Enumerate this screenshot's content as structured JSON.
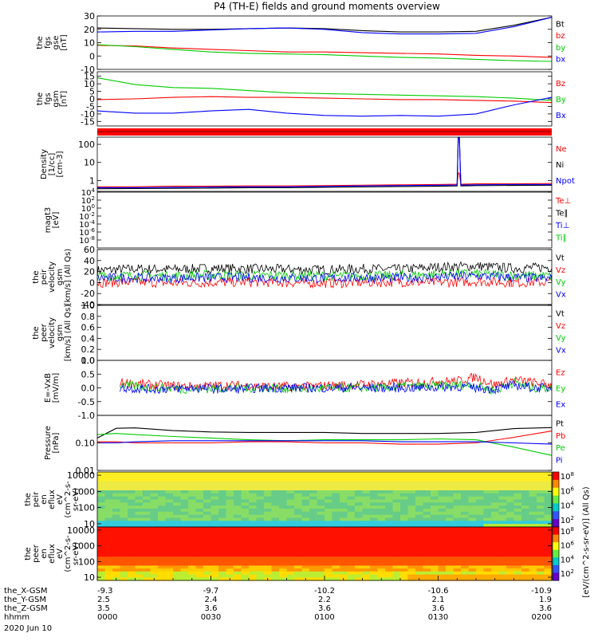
{
  "title": "P4 (TH-E) fields and ground moments overview",
  "date": "2020 Jun 10",
  "colorbar_label": "[eV/(cm^2-s-sr-eV)] (All Qs)",
  "colors": {
    "black": "#000000",
    "red": "#ff0000",
    "green": "#00cc00",
    "blue": "#0000ff"
  },
  "chart_data": [
    {
      "type": "line",
      "id": "fgs",
      "ylabel_lines": [
        "the",
        "fgs",
        "gse",
        "[nT]"
      ],
      "ylim": [
        -10,
        30
      ],
      "ytick_labels": [
        "30",
        "20",
        "10",
        "0",
        "-10"
      ],
      "ytick_values": [
        30,
        20,
        10,
        0,
        -10
      ],
      "x": [
        0,
        10,
        20,
        30,
        40,
        50,
        60,
        70,
        80,
        90,
        100,
        110,
        120
      ],
      "series": [
        {
          "name": "Bt",
          "color": "black",
          "values": [
            21,
            20.5,
            20,
            20,
            20.5,
            21,
            20.5,
            19,
            18,
            18,
            18.5,
            23,
            29
          ]
        },
        {
          "name": "bz",
          "color": "red",
          "values": [
            8,
            7.5,
            6,
            5,
            4,
            3,
            3,
            2.5,
            2,
            1.5,
            0.5,
            0,
            -1
          ]
        },
        {
          "name": "by",
          "color": "green",
          "values": [
            8.5,
            7,
            5,
            3,
            2,
            1.5,
            1,
            0,
            -1,
            -1.5,
            -2.5,
            -3.5,
            -4
          ]
        },
        {
          "name": "bx",
          "color": "blue",
          "values": [
            18,
            18.5,
            18.5,
            19.5,
            20.5,
            21,
            20,
            17.5,
            16.5,
            16.5,
            17,
            22,
            29
          ]
        }
      ]
    },
    {
      "type": "line",
      "id": "fgs-gsm",
      "ylabel_lines": [
        "the",
        "fgs",
        "gsm",
        "[nT]"
      ],
      "ylim": [
        -18,
        18
      ],
      "ytick_labels": [
        "15",
        "10",
        "5",
        "0",
        "-5",
        "-10",
        "-15"
      ],
      "ytick_values": [
        15,
        10,
        5,
        0,
        -5,
        -10,
        -15
      ],
      "x": [
        0,
        10,
        20,
        30,
        40,
        50,
        60,
        70,
        80,
        90,
        100,
        110,
        120
      ],
      "series": [
        {
          "name": "Bz",
          "color": "red",
          "values": [
            -0.5,
            0,
            1,
            1.5,
            1,
            1,
            0.5,
            0,
            -0.5,
            -0.5,
            -1,
            -1.5,
            -2.5
          ]
        },
        {
          "name": "By",
          "color": "green",
          "values": [
            14,
            9.5,
            7.5,
            7,
            5.5,
            4,
            3.5,
            3,
            2.5,
            2,
            1.5,
            0.5,
            -1
          ]
        },
        {
          "name": "Bx",
          "color": "blue",
          "values": [
            -8,
            -9.5,
            -9.5,
            -8,
            -7,
            -9.5,
            -11,
            -11.5,
            -11,
            -11.5,
            -10,
            -4,
            1
          ]
        }
      ]
    },
    {
      "type": "line",
      "id": "density",
      "scale": "log",
      "ylabel_lines": [
        "Density",
        "[1/cc]",
        "[cm-3]"
      ],
      "ylim_log10": [
        -0.6,
        2.4
      ],
      "ytick_labels": [
        "100",
        "10",
        "1"
      ],
      "ytick_values": [
        100,
        10,
        1
      ],
      "x": [
        0,
        10,
        20,
        30,
        40,
        50,
        60,
        70,
        80,
        90,
        95,
        95.3,
        95.6,
        96,
        100,
        110,
        120
      ],
      "series": [
        {
          "name": "Ne",
          "color": "red",
          "values": [
            0.45,
            0.45,
            0.48,
            0.48,
            0.5,
            0.5,
            0.52,
            0.55,
            0.58,
            0.6,
            0.62,
            2.6,
            2.6,
            0.62,
            0.65,
            0.65,
            0.68
          ]
        },
        {
          "name": "Ni",
          "color": "black",
          "values": [
            0.35,
            0.36,
            0.37,
            0.38,
            0.4,
            0.4,
            0.42,
            0.44,
            0.46,
            0.48,
            0.5,
            250,
            250,
            0.5,
            0.52,
            0.53,
            0.55
          ]
        },
        {
          "name": "Npot",
          "color": "blue",
          "values": [
            0.4,
            0.4,
            0.42,
            0.43,
            0.45,
            0.45,
            0.47,
            0.5,
            0.52,
            0.55,
            0.56,
            250,
            250,
            0.56,
            0.58,
            0.6,
            0.6
          ]
        }
      ]
    },
    {
      "type": "line",
      "id": "magt3",
      "scale": "log",
      "ylabel_lines": [
        "magt3",
        "[eV]"
      ],
      "ylim_log10": [
        -10,
        4
      ],
      "ytick_labels": [
        "10^4",
        "10^2",
        "10^0",
        "10^-2",
        "10^-4",
        "10^-6",
        "10^-8"
      ],
      "ytick_values_log10": [
        4,
        2,
        0,
        -2,
        -4,
        -6,
        -8
      ],
      "series": [
        {
          "name": "Te⊥",
          "color": "red"
        },
        {
          "name": "Te∥",
          "color": "black"
        },
        {
          "name": "Ti⊥",
          "color": "blue"
        },
        {
          "name": "Ti∥",
          "color": "green"
        }
      ]
    },
    {
      "type": "line",
      "id": "peir-velocity",
      "ylabel_lines": [
        "the",
        "peir",
        "velocity",
        "gsm",
        "[km/s] (All Qs)"
      ],
      "ylim": [
        -40,
        60
      ],
      "ytick_labels": [
        "60",
        "40",
        "20",
        "0",
        "-20",
        "-40"
      ],
      "ytick_values": [
        60,
        40,
        20,
        0,
        -20,
        -40
      ],
      "x": [
        0,
        10,
        20,
        30,
        40,
        50,
        60,
        70,
        80,
        90,
        100,
        110,
        120
      ],
      "series": [
        {
          "name": "Vt",
          "color": "black",
          "values": [
            22,
            25,
            24,
            26,
            25,
            24,
            23,
            25,
            24,
            28,
            30,
            26,
            28
          ]
        },
        {
          "name": "Vz",
          "color": "red",
          "values": [
            0,
            1,
            -1,
            0,
            1,
            0,
            -1,
            0,
            1,
            0,
            2,
            0,
            1
          ]
        },
        {
          "name": "Vy",
          "color": "green",
          "values": [
            12,
            13,
            12,
            14,
            13,
            13,
            12,
            12,
            13,
            15,
            16,
            13,
            12
          ]
        },
        {
          "name": "Vx",
          "color": "blue",
          "values": [
            8,
            9,
            8,
            9,
            9,
            8,
            8,
            9,
            8,
            10,
            12,
            9,
            7
          ]
        }
      ]
    },
    {
      "type": "line",
      "id": "peer-velocity",
      "ylabel_lines": [
        "the",
        "peer",
        "velocity",
        "gsm",
        "[km/s] (All Qs)"
      ],
      "ylim": [
        0,
        1
      ],
      "ytick_labels": [
        "1.0",
        "0.8",
        "0.6",
        "0.4",
        "0.2",
        "0.0"
      ],
      "ytick_values": [
        1.0,
        0.8,
        0.6,
        0.4,
        0.2,
        0.0
      ],
      "series": [
        {
          "name": "Vt",
          "color": "black"
        },
        {
          "name": "Vz",
          "color": "red"
        },
        {
          "name": "Vy",
          "color": "green"
        },
        {
          "name": "Vx",
          "color": "blue"
        }
      ]
    },
    {
      "type": "line",
      "id": "e-field",
      "ylabel_lines": [
        "E=-VxB",
        "[mV/m]"
      ],
      "ylim": [
        -1,
        1
      ],
      "ytick_labels": [
        "1.0",
        "0.5",
        "0.0",
        "-0.5",
        "-1.0"
      ],
      "ytick_values": [
        1.0,
        0.5,
        0.0,
        -0.5,
        -1.0
      ],
      "x": [
        6,
        15,
        25,
        35,
        45,
        55,
        65,
        75,
        85,
        95,
        100,
        105,
        110,
        115,
        120
      ],
      "series": [
        {
          "name": "Ez",
          "color": "red",
          "values": [
            0.2,
            0.1,
            0.05,
            0.1,
            0.05,
            0.05,
            0.1,
            0.15,
            0.2,
            0.25,
            0.4,
            0.1,
            0.3,
            0.2,
            0.1
          ]
        },
        {
          "name": "Ey",
          "color": "green",
          "values": [
            0.1,
            0.0,
            -0.05,
            0.0,
            0.0,
            -0.05,
            0.0,
            0.0,
            0.05,
            0.1,
            0.1,
            -0.1,
            0.2,
            0.0,
            0.0
          ]
        },
        {
          "name": "Ex",
          "color": "blue",
          "values": [
            0.0,
            -0.05,
            0.0,
            -0.05,
            0.0,
            0.0,
            0.0,
            0.0,
            0.0,
            0.05,
            0.0,
            -0.05,
            0.1,
            0.0,
            0.0
          ]
        }
      ]
    },
    {
      "type": "line",
      "id": "pressure",
      "scale": "log",
      "ylabel_lines": [
        "Pressure",
        "[nPa]"
      ],
      "ylim_log10": [
        -2,
        0
      ],
      "ytick_labels": [
        "0.10",
        "0.01"
      ],
      "ytick_values": [
        0.1,
        0.01
      ],
      "x": [
        0,
        5,
        10,
        20,
        30,
        40,
        50,
        60,
        70,
        80,
        90,
        100,
        110,
        120
      ],
      "series": [
        {
          "name": "Pt",
          "color": "black",
          "values": [
            0.15,
            0.34,
            0.35,
            0.28,
            0.25,
            0.24,
            0.24,
            0.24,
            0.22,
            0.22,
            0.22,
            0.24,
            0.33,
            0.36
          ]
        },
        {
          "name": "Pb",
          "color": "red",
          "values": [
            0.11,
            0.11,
            0.1,
            0.1,
            0.1,
            0.11,
            0.11,
            0.1,
            0.1,
            0.09,
            0.09,
            0.1,
            0.16,
            0.27
          ]
        },
        {
          "name": "Pe",
          "color": "green",
          "values": [
            0.2,
            0.22,
            0.2,
            0.17,
            0.15,
            0.13,
            0.12,
            0.13,
            0.13,
            0.13,
            0.14,
            0.13,
            0.07,
            0.035
          ]
        },
        {
          "name": "Pi",
          "color": "blue",
          "values": [
            0.1,
            0.1,
            0.11,
            0.12,
            0.12,
            0.12,
            0.12,
            0.12,
            0.12,
            0.11,
            0.11,
            0.11,
            0.1,
            0.09
          ]
        }
      ]
    },
    {
      "type": "heatmap",
      "id": "peir-eflux",
      "ylabel_lines": [
        "the",
        "peir",
        "en",
        "eflux",
        "eV",
        "(cm^2-s-",
        "sr-eV)"
      ],
      "ylim_log10": [
        0.8,
        4.2
      ],
      "ytick_labels": [
        "10000",
        "1000",
        "100",
        "10"
      ],
      "ytick_values": [
        10000,
        1000,
        100,
        10
      ],
      "colorbar_tick_labels": [
        "10^8",
        "10^6",
        "10^4",
        "10^2"
      ]
    },
    {
      "type": "heatmap",
      "id": "peer-eflux",
      "ylabel_lines": [
        "the",
        "peer",
        "en",
        "eflux",
        "eV",
        "(cm^2-s-",
        "sr-eV)"
      ],
      "ylim_log10": [
        0.8,
        4.2
      ],
      "ytick_labels": [
        "10000",
        "1000",
        "100",
        "10"
      ],
      "ytick_values": [
        10000,
        1000,
        100,
        10
      ],
      "colorbar_tick_labels": [
        "10^8",
        "10^6",
        "10^4",
        "10^2"
      ]
    }
  ],
  "x_axis": {
    "range": [
      0,
      120
    ],
    "major_ticks": [
      0,
      30,
      60,
      90,
      120
    ],
    "rows": [
      {
        "label": "the_X-GSM",
        "values": [
          "-9.3",
          "-9.7",
          "-10.2",
          "-10.6",
          "-10.9"
        ]
      },
      {
        "label": "the_Y-GSM",
        "values": [
          "2.5",
          "2.4",
          "2.2",
          "2.1",
          "1.9"
        ]
      },
      {
        "label": "the_Z-GSM",
        "values": [
          "3.5",
          "3.6",
          "3.6",
          "3.6",
          "3.6"
        ]
      },
      {
        "label": "hhmm",
        "values": [
          "0000",
          "0030",
          "0100",
          "0130",
          "0200"
        ]
      }
    ]
  }
}
